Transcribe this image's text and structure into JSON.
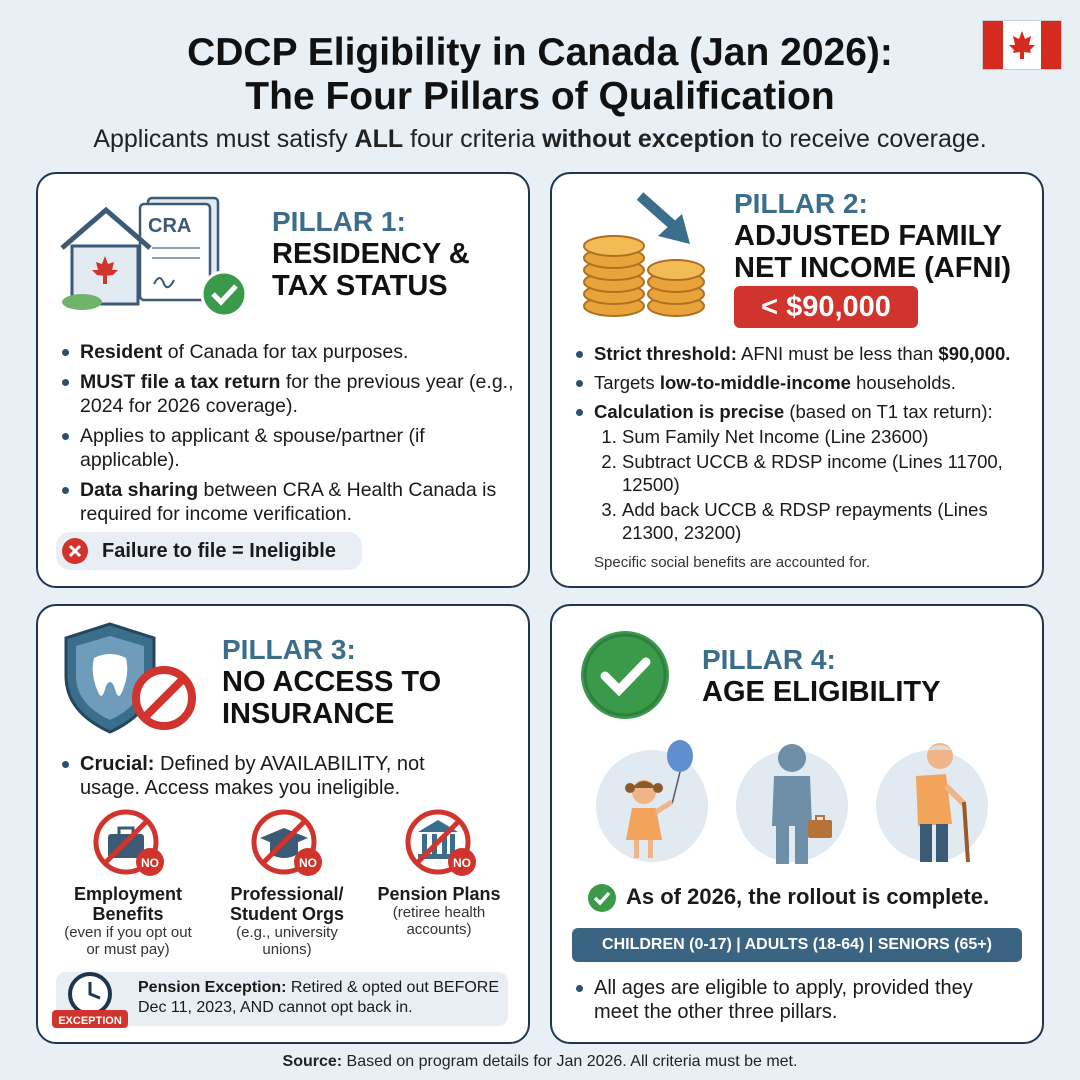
{
  "header": {
    "title_line1": "CDCP Eligibility in Canada (Jan 2026):",
    "title_line2": "The Four Pillars of Qualification",
    "subtitle_pre": "Applicants must satisfy ",
    "subtitle_all": "ALL",
    "subtitle_mid": " four criteria ",
    "subtitle_bold": "without exception",
    "subtitle_post": " to receive coverage."
  },
  "pillar1": {
    "num": "PILLAR 1:",
    "name_l1": "RESIDENCY &",
    "name_l2": "TAX STATUS",
    "doc_label": "CRA",
    "b1_bold": "Resident",
    "b1_rest": " of Canada for tax purposes.",
    "b2_bold": "MUST file a tax return",
    "b2_rest": " for the previous year (e.g., 2024 for 2026 coverage).",
    "b3": "Applies to applicant & spouse/partner (if applicable).",
    "b4_bold": "Data sharing",
    "b4_rest": " between CRA & Health Canada is required for income verification.",
    "warning": "Failure to file = Ineligible"
  },
  "pillar2": {
    "num": "PILLAR 2:",
    "name_l1": "ADJUSTED FAMILY",
    "name_l2": "NET INCOME (AFNI)",
    "badge": "< $90,000",
    "b1_bold": "Strict threshold:",
    "b1_rest": " AFNI must be less than ",
    "b1_amount": "$90,000.",
    "b2_pre": "Targets ",
    "b2_bold": "low-to-middle-income",
    "b2_post": " households.",
    "b3_bold": "Calculation is precise",
    "b3_rest": " (based on T1 tax return):",
    "step1": "Sum Family Net Income (Line 23600)",
    "step2": "Subtract UCCB & RDSP income (Lines 11700, 12500)",
    "step3": "Add back UCCB & RDSP repayments (Lines 21300, 23200)",
    "footnote": "Specific social benefits are accounted for."
  },
  "pillar3": {
    "num": "PILLAR 3:",
    "name_l1": "NO ACCESS TO",
    "name_l2": "INSURANCE",
    "b1_bold": "Crucial:",
    "b1_rest": " Defined by AVAILABILITY, not usage. Access makes you ineligible.",
    "no_label": "NO",
    "items": [
      {
        "title": "Employment Benefits",
        "note": "(even if you opt out or must pay)"
      },
      {
        "title": "Professional/ Student Orgs",
        "note": "(e.g., university unions)"
      },
      {
        "title": "Pension Plans",
        "note": "(retiree health accounts)"
      }
    ],
    "exception_label": "EXCEPTION",
    "exception_bold": "Pension Exception:",
    "exception_text": " Retired & opted out BEFORE Dec 11, 2023, AND cannot opt back in."
  },
  "pillar4": {
    "num": "PILLAR 4:",
    "name": "AGE ELIGIBILITY",
    "rollout": "As of 2026, the rollout is complete.",
    "groups": "CHILDREN (0-17)  |  ADULTS (18-64)  |  SENIORS (65+)",
    "b1": "All ages are eligible to apply, provided they meet the other three pillars."
  },
  "footer": {
    "source_bold": "Source:",
    "source_text": " Based on program details for Jan 2026. All criteria must be met."
  },
  "colors": {
    "accent_blue": "#3b6e8a",
    "alert_red": "#d0342c",
    "check_green": "#3a9a4a",
    "navy": "#1e3550"
  }
}
